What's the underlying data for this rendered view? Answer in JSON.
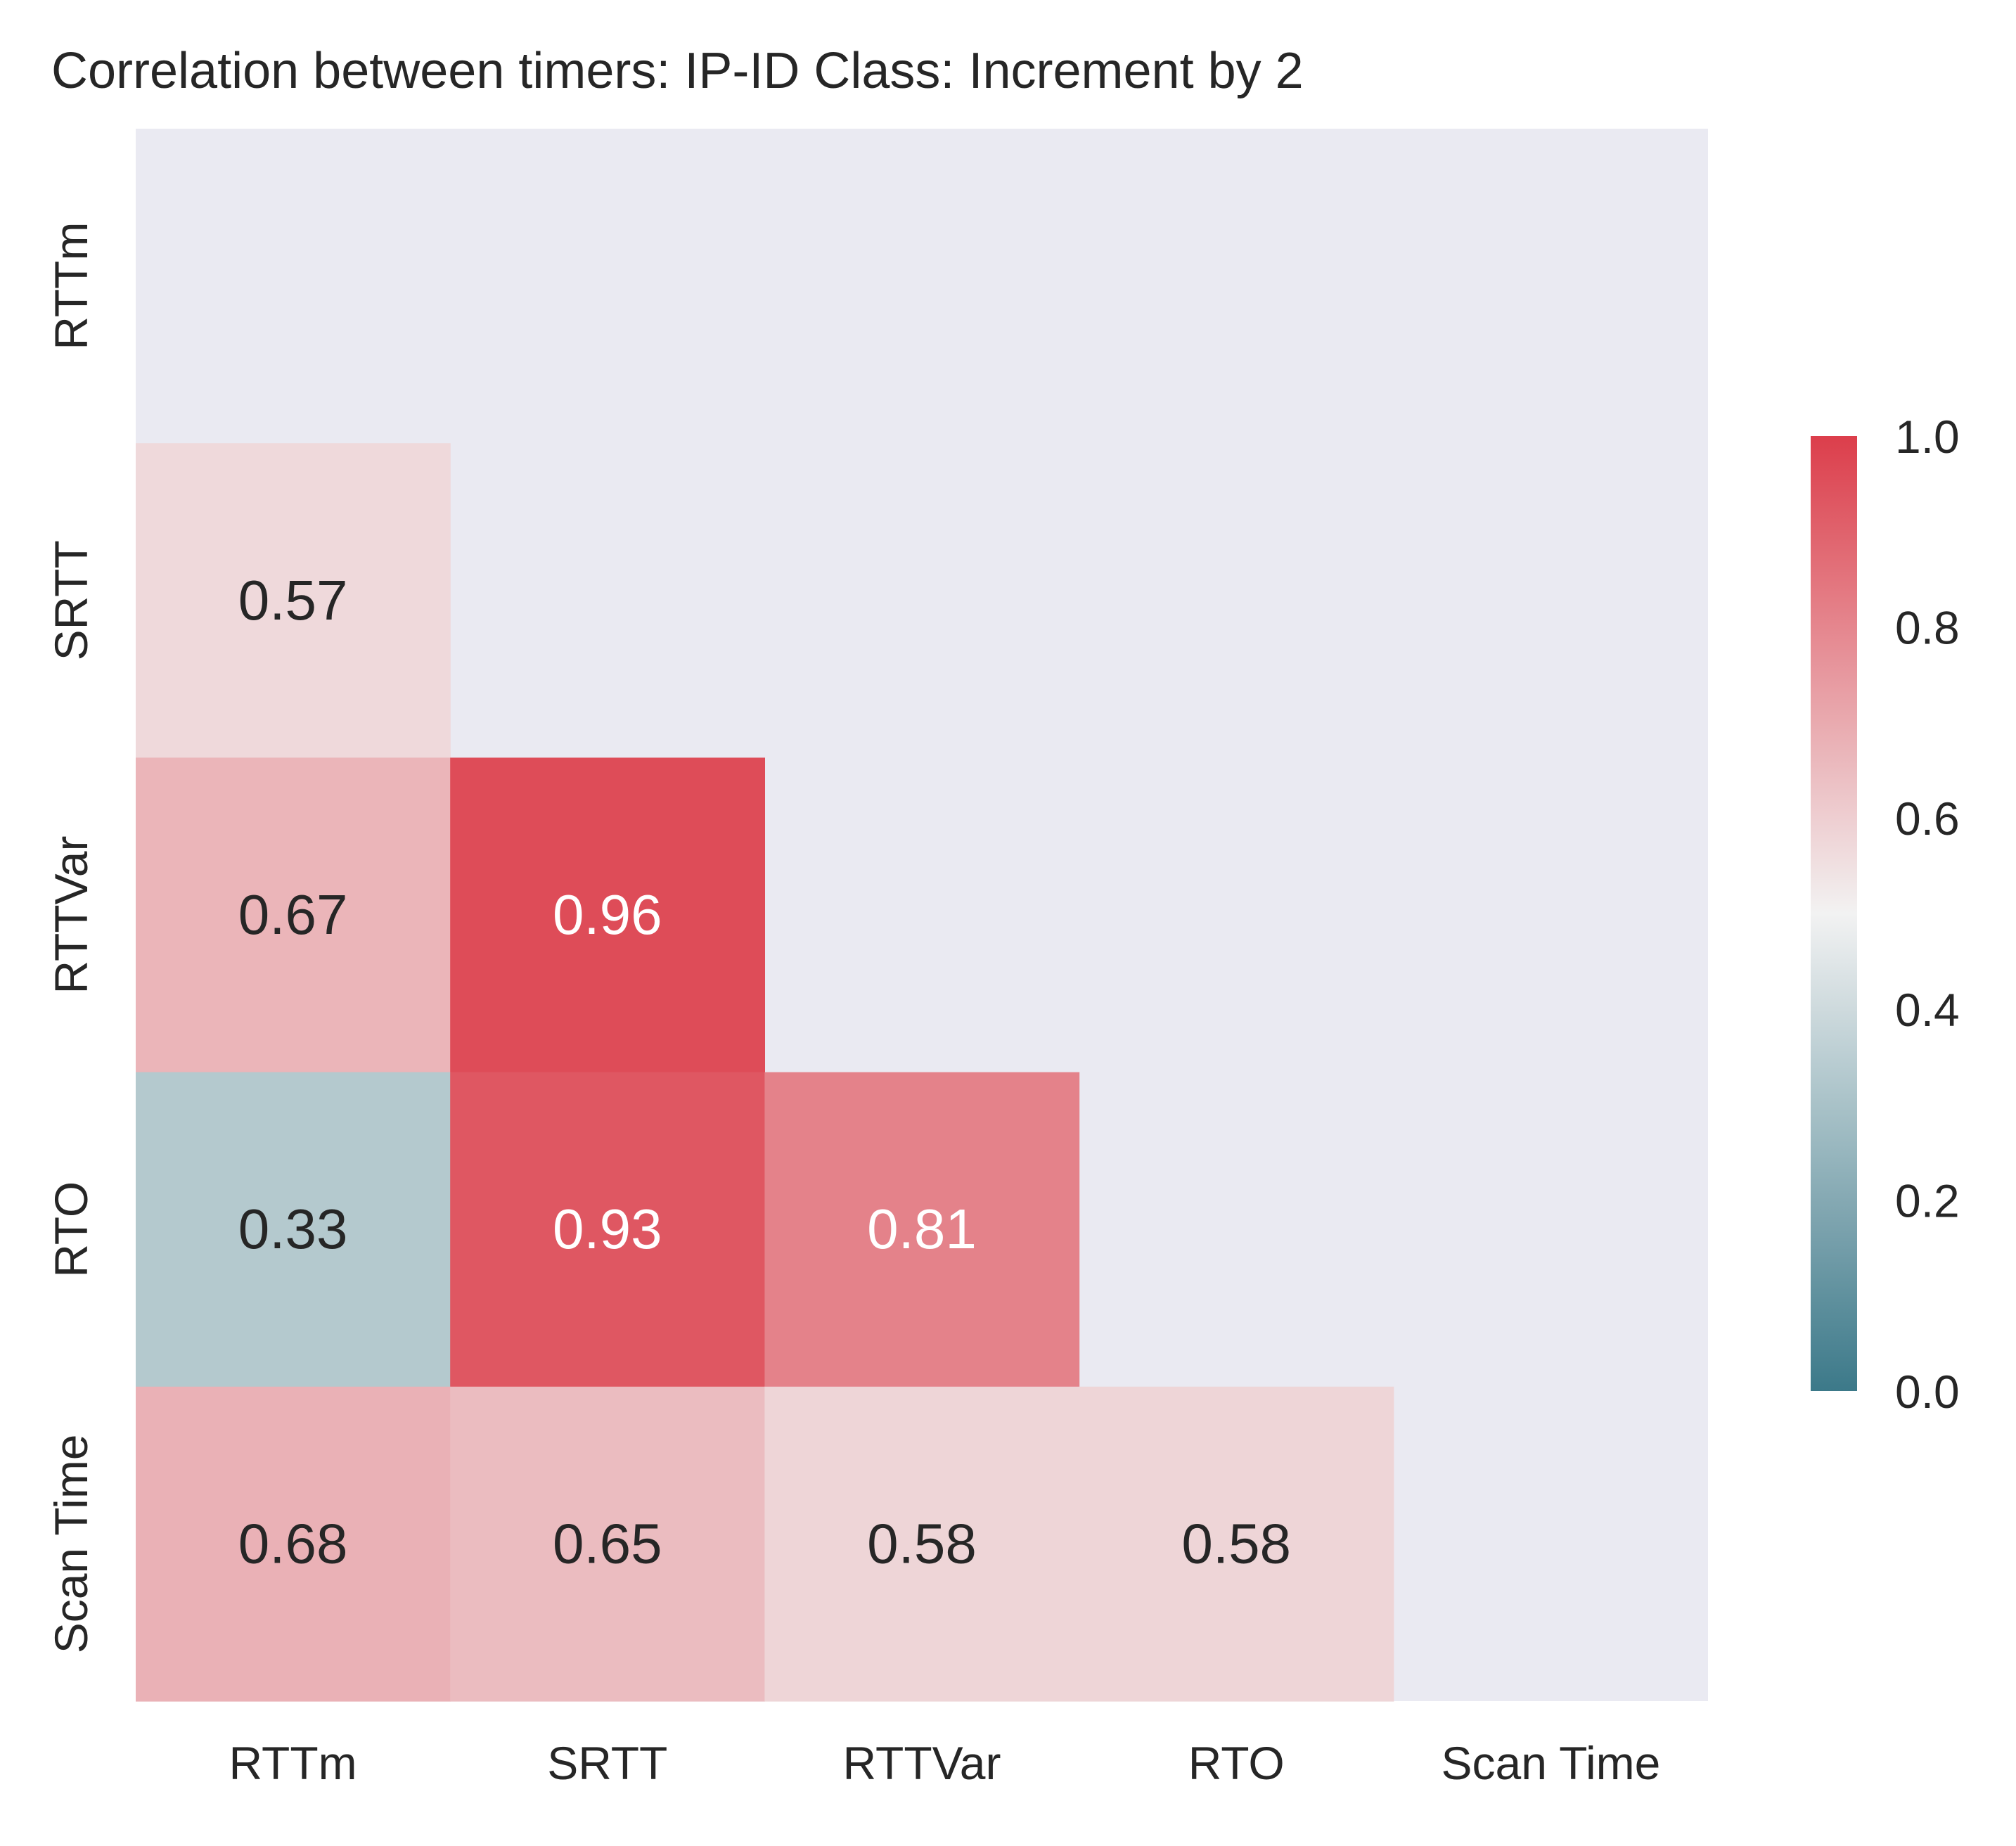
{
  "chart_data": {
    "type": "heatmap",
    "title": "Correlation between timers: IP-ID Class: Increment by 2",
    "xlabel": "",
    "ylabel": "",
    "x_tick_labels": [
      "RTTm",
      "SRTT",
      "RTTVar",
      "RTO",
      "Scan Time"
    ],
    "y_tick_labels": [
      "RTTm",
      "SRTT",
      "RTTVar",
      "RTO",
      "Scan Time"
    ],
    "mask": "upper-triangle-including-diagonal",
    "values": [
      [
        null,
        null,
        null,
        null,
        null
      ],
      [
        0.57,
        null,
        null,
        null,
        null
      ],
      [
        0.67,
        0.96,
        null,
        null,
        null
      ],
      [
        0.33,
        0.93,
        0.81,
        null,
        null
      ],
      [
        0.68,
        0.65,
        0.58,
        0.58,
        null
      ]
    ],
    "cell_labels": [
      [
        "",
        "",
        "",
        "",
        ""
      ],
      [
        "0.57",
        "",
        "",
        "",
        ""
      ],
      [
        "0.67",
        "0.96",
        "",
        "",
        ""
      ],
      [
        "0.33",
        "0.93",
        "0.81",
        "",
        ""
      ],
      [
        "0.68",
        "0.65",
        "0.58",
        "0.58",
        ""
      ]
    ],
    "colorbar": {
      "range": [
        0.0,
        1.0
      ],
      "tick_labels": [
        "0.0",
        "0.2",
        "0.4",
        "0.6",
        "0.8",
        "1.0"
      ],
      "low_color": "#3c7989",
      "mid_color": "#f2f2f2",
      "high_color": "#dc3e4b"
    },
    "mask_color": "#eaeaf2",
    "grid": false
  }
}
